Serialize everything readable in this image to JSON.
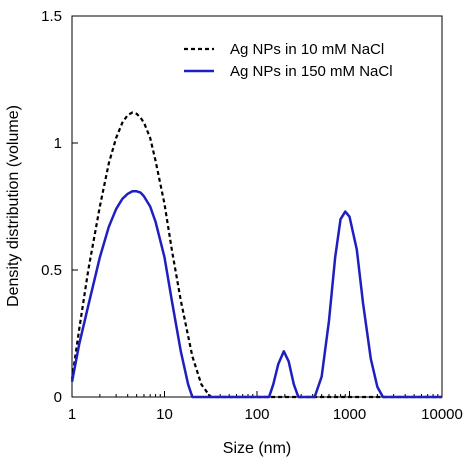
{
  "chart_data": {
    "type": "line",
    "xlabel": "Size (nm)",
    "ylabel": "Density distribution (volume)",
    "x_scale": "log",
    "xlim": [
      1,
      10000
    ],
    "ylim": [
      0,
      1.5
    ],
    "x_ticks": [
      1,
      10,
      100,
      1000,
      10000
    ],
    "x_tick_labels": [
      "1",
      "10",
      "100",
      "1000",
      "10000"
    ],
    "y_ticks": [
      0,
      0.5,
      1,
      1.5
    ],
    "y_tick_labels": [
      "0",
      "0.5",
      "1",
      "1.5"
    ],
    "grid": false,
    "legend_position": "top-right",
    "series": [
      {
        "name": "Ag NPs in 10 mM NaCl",
        "color": "#000000",
        "line_style": "dashed",
        "points": [
          [
            1.0,
            0.07
          ],
          [
            1.2,
            0.27
          ],
          [
            1.5,
            0.5
          ],
          [
            2.0,
            0.75
          ],
          [
            2.5,
            0.92
          ],
          [
            3.0,
            1.02
          ],
          [
            3.5,
            1.08
          ],
          [
            4.0,
            1.11
          ],
          [
            4.5,
            1.12
          ],
          [
            5.0,
            1.115
          ],
          [
            5.5,
            1.1
          ],
          [
            6.0,
            1.08
          ],
          [
            7.0,
            1.02
          ],
          [
            8.0,
            0.93
          ],
          [
            10.0,
            0.76
          ],
          [
            12.0,
            0.58
          ],
          [
            15.0,
            0.38
          ],
          [
            20.0,
            0.16
          ],
          [
            25.0,
            0.05
          ],
          [
            30.0,
            0.01
          ],
          [
            32.0,
            0.0
          ],
          [
            10000,
            0.0
          ]
        ]
      },
      {
        "name": "Ag NPs in 150 mM NaCl",
        "color": "#1f1fbf",
        "line_style": "solid",
        "points": [
          [
            1.0,
            0.06
          ],
          [
            1.2,
            0.21
          ],
          [
            1.5,
            0.36
          ],
          [
            2.0,
            0.55
          ],
          [
            2.5,
            0.67
          ],
          [
            3.0,
            0.74
          ],
          [
            3.5,
            0.78
          ],
          [
            4.0,
            0.8
          ],
          [
            4.5,
            0.81
          ],
          [
            5.0,
            0.81
          ],
          [
            5.5,
            0.805
          ],
          [
            6.0,
            0.79
          ],
          [
            7.0,
            0.75
          ],
          [
            8.0,
            0.69
          ],
          [
            10.0,
            0.55
          ],
          [
            12.0,
            0.38
          ],
          [
            15.0,
            0.18
          ],
          [
            18.0,
            0.05
          ],
          [
            20.0,
            0.0
          ],
          [
            135,
            0.0
          ],
          [
            150,
            0.05
          ],
          [
            170,
            0.13
          ],
          [
            195,
            0.18
          ],
          [
            220,
            0.14
          ],
          [
            250,
            0.05
          ],
          [
            280,
            0.0
          ],
          [
            420,
            0.0
          ],
          [
            500,
            0.08
          ],
          [
            600,
            0.3
          ],
          [
            700,
            0.55
          ],
          [
            800,
            0.7
          ],
          [
            900,
            0.73
          ],
          [
            1000,
            0.71
          ],
          [
            1200,
            0.58
          ],
          [
            1400,
            0.37
          ],
          [
            1700,
            0.15
          ],
          [
            2000,
            0.04
          ],
          [
            2300,
            0.0
          ],
          [
            10000,
            0.0
          ]
        ]
      }
    ]
  }
}
